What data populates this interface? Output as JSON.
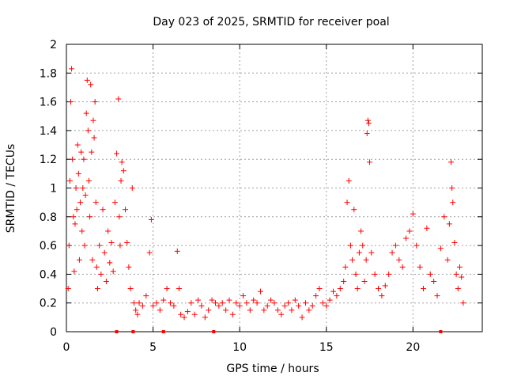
{
  "chart_data": {
    "type": "scatter",
    "title": "Day 023 of 2025, SRMTID for receiver poal",
    "xlabel": "GPS time / hours",
    "ylabel": "SRMTID / TECUs",
    "xlim": [
      0,
      24
    ],
    "ylim": [
      0,
      2
    ],
    "xticks": [
      0,
      5,
      10,
      15,
      20
    ],
    "xtick_labels": [
      "0",
      "5",
      "10",
      "15",
      "20"
    ],
    "yticks": [
      0,
      0.2,
      0.4,
      0.6,
      0.8,
      1,
      1.2,
      1.4,
      1.6,
      1.8,
      2
    ],
    "ytick_labels": [
      "0",
      "0.2",
      "0.4",
      "0.6",
      "0.8",
      "1",
      "1.2",
      "1.4",
      "1.6",
      "1.8",
      "2"
    ],
    "grid": true,
    "marker": "+",
    "color": "#ff0000",
    "series": [
      {
        "name": "SRMTID",
        "points": [
          [
            0.1,
            0.3
          ],
          [
            0.15,
            0.6
          ],
          [
            0.2,
            1.05
          ],
          [
            0.25,
            1.6
          ],
          [
            0.3,
            1.83
          ],
          [
            0.35,
            1.2
          ],
          [
            0.4,
            0.8
          ],
          [
            0.45,
            0.42
          ],
          [
            0.5,
            0.75
          ],
          [
            0.55,
            1.0
          ],
          [
            0.6,
            0.85
          ],
          [
            0.65,
            1.3
          ],
          [
            0.7,
            1.1
          ],
          [
            0.75,
            0.5
          ],
          [
            0.8,
            0.9
          ],
          [
            0.85,
            1.25
          ],
          [
            0.9,
            0.7
          ],
          [
            0.95,
            1.0
          ],
          [
            1.0,
            1.2
          ],
          [
            1.05,
            0.6
          ],
          [
            1.1,
            0.95
          ],
          [
            1.15,
            1.52
          ],
          [
            1.2,
            1.75
          ],
          [
            1.25,
            1.4
          ],
          [
            1.3,
            1.05
          ],
          [
            1.35,
            0.8
          ],
          [
            1.4,
            1.72
          ],
          [
            1.45,
            1.25
          ],
          [
            1.5,
            0.5
          ],
          [
            1.55,
            1.47
          ],
          [
            1.6,
            1.35
          ],
          [
            1.65,
            1.6
          ],
          [
            1.7,
            0.9
          ],
          [
            1.75,
            0.45
          ],
          [
            1.8,
            0.3
          ],
          [
            1.9,
            0.6
          ],
          [
            2.0,
            0.4
          ],
          [
            2.1,
            0.85
          ],
          [
            2.2,
            0.55
          ],
          [
            2.3,
            0.35
          ],
          [
            2.4,
            0.7
          ],
          [
            2.5,
            0.48
          ],
          [
            2.6,
            0.62
          ],
          [
            2.7,
            0.42
          ],
          [
            2.8,
            0.9
          ],
          [
            2.9,
            1.24
          ],
          [
            3.0,
            1.62
          ],
          [
            3.05,
            0.8
          ],
          [
            3.1,
            0.6
          ],
          [
            3.15,
            1.05
          ],
          [
            3.2,
            1.18
          ],
          [
            3.3,
            1.12
          ],
          [
            3.4,
            0.85
          ],
          [
            3.5,
            0.62
          ],
          [
            3.6,
            0.45
          ],
          [
            3.7,
            0.3
          ],
          [
            3.8,
            1.0
          ],
          [
            3.9,
            0.2
          ],
          [
            4.0,
            0.15
          ],
          [
            4.1,
            0.12
          ],
          [
            4.2,
            0.2
          ],
          [
            4.4,
            0.18
          ],
          [
            4.6,
            0.25
          ],
          [
            4.8,
            0.55
          ],
          [
            4.9,
            0.78
          ],
          [
            5.0,
            0.18
          ],
          [
            5.2,
            0.2
          ],
          [
            5.4,
            0.15
          ],
          [
            5.6,
            0.22
          ],
          [
            5.8,
            0.3
          ],
          [
            6.0,
            0.2
          ],
          [
            6.2,
            0.18
          ],
          [
            6.4,
            0.56
          ],
          [
            6.5,
            0.3
          ],
          [
            6.6,
            0.12
          ],
          [
            6.8,
            0.1
          ],
          [
            7.0,
            0.14
          ],
          [
            7.2,
            0.2
          ],
          [
            7.4,
            0.12
          ],
          [
            7.6,
            0.22
          ],
          [
            7.8,
            0.18
          ],
          [
            8.0,
            0.1
          ],
          [
            8.2,
            0.15
          ],
          [
            8.4,
            0.22
          ],
          [
            8.6,
            0.2
          ],
          [
            8.8,
            0.18
          ],
          [
            9.0,
            0.2
          ],
          [
            9.2,
            0.15
          ],
          [
            9.4,
            0.22
          ],
          [
            9.6,
            0.12
          ],
          [
            9.8,
            0.2
          ],
          [
            10.0,
            0.18
          ],
          [
            10.2,
            0.25
          ],
          [
            10.4,
            0.2
          ],
          [
            10.6,
            0.15
          ],
          [
            10.8,
            0.22
          ],
          [
            11.0,
            0.2
          ],
          [
            11.2,
            0.28
          ],
          [
            11.4,
            0.15
          ],
          [
            11.6,
            0.18
          ],
          [
            11.8,
            0.22
          ],
          [
            12.0,
            0.2
          ],
          [
            12.2,
            0.15
          ],
          [
            12.4,
            0.12
          ],
          [
            12.6,
            0.18
          ],
          [
            12.8,
            0.2
          ],
          [
            13.0,
            0.15
          ],
          [
            13.2,
            0.22
          ],
          [
            13.4,
            0.18
          ],
          [
            13.6,
            0.1
          ],
          [
            13.8,
            0.2
          ],
          [
            14.0,
            0.15
          ],
          [
            14.2,
            0.18
          ],
          [
            14.4,
            0.25
          ],
          [
            14.6,
            0.3
          ],
          [
            14.8,
            0.2
          ],
          [
            15.0,
            0.18
          ],
          [
            15.2,
            0.22
          ],
          [
            15.4,
            0.28
          ],
          [
            15.6,
            0.25
          ],
          [
            15.8,
            0.3
          ],
          [
            16.0,
            0.35
          ],
          [
            16.1,
            0.45
          ],
          [
            16.2,
            0.9
          ],
          [
            16.3,
            1.05
          ],
          [
            16.4,
            0.6
          ],
          [
            16.5,
            0.5
          ],
          [
            16.6,
            0.85
          ],
          [
            16.7,
            0.4
          ],
          [
            16.8,
            0.3
          ],
          [
            16.9,
            0.55
          ],
          [
            17.0,
            0.7
          ],
          [
            17.1,
            0.6
          ],
          [
            17.2,
            0.35
          ],
          [
            17.3,
            0.5
          ],
          [
            17.35,
            1.38
          ],
          [
            17.4,
            1.47
          ],
          [
            17.45,
            1.45
          ],
          [
            17.5,
            1.18
          ],
          [
            17.6,
            0.55
          ],
          [
            17.8,
            0.4
          ],
          [
            18.0,
            0.3
          ],
          [
            18.2,
            0.25
          ],
          [
            18.4,
            0.32
          ],
          [
            18.6,
            0.4
          ],
          [
            18.8,
            0.55
          ],
          [
            19.0,
            0.6
          ],
          [
            19.2,
            0.5
          ],
          [
            19.4,
            0.45
          ],
          [
            19.6,
            0.65
          ],
          [
            19.8,
            0.7
          ],
          [
            20.0,
            0.82
          ],
          [
            20.2,
            0.6
          ],
          [
            20.4,
            0.45
          ],
          [
            20.6,
            0.3
          ],
          [
            20.8,
            0.72
          ],
          [
            21.0,
            0.4
          ],
          [
            21.2,
            0.35
          ],
          [
            21.4,
            0.25
          ],
          [
            21.6,
            0.58
          ],
          [
            21.8,
            0.8
          ],
          [
            22.0,
            0.5
          ],
          [
            22.1,
            0.75
          ],
          [
            22.2,
            1.18
          ],
          [
            22.25,
            1.0
          ],
          [
            22.3,
            0.9
          ],
          [
            22.4,
            0.62
          ],
          [
            22.5,
            0.4
          ],
          [
            22.6,
            0.3
          ],
          [
            22.7,
            0.45
          ],
          [
            22.8,
            0.38
          ],
          [
            22.9,
            0.2
          ]
        ]
      }
    ],
    "zero_markers_x": [
      2.9,
      3.85,
      5.6,
      8.5,
      21.6
    ]
  }
}
